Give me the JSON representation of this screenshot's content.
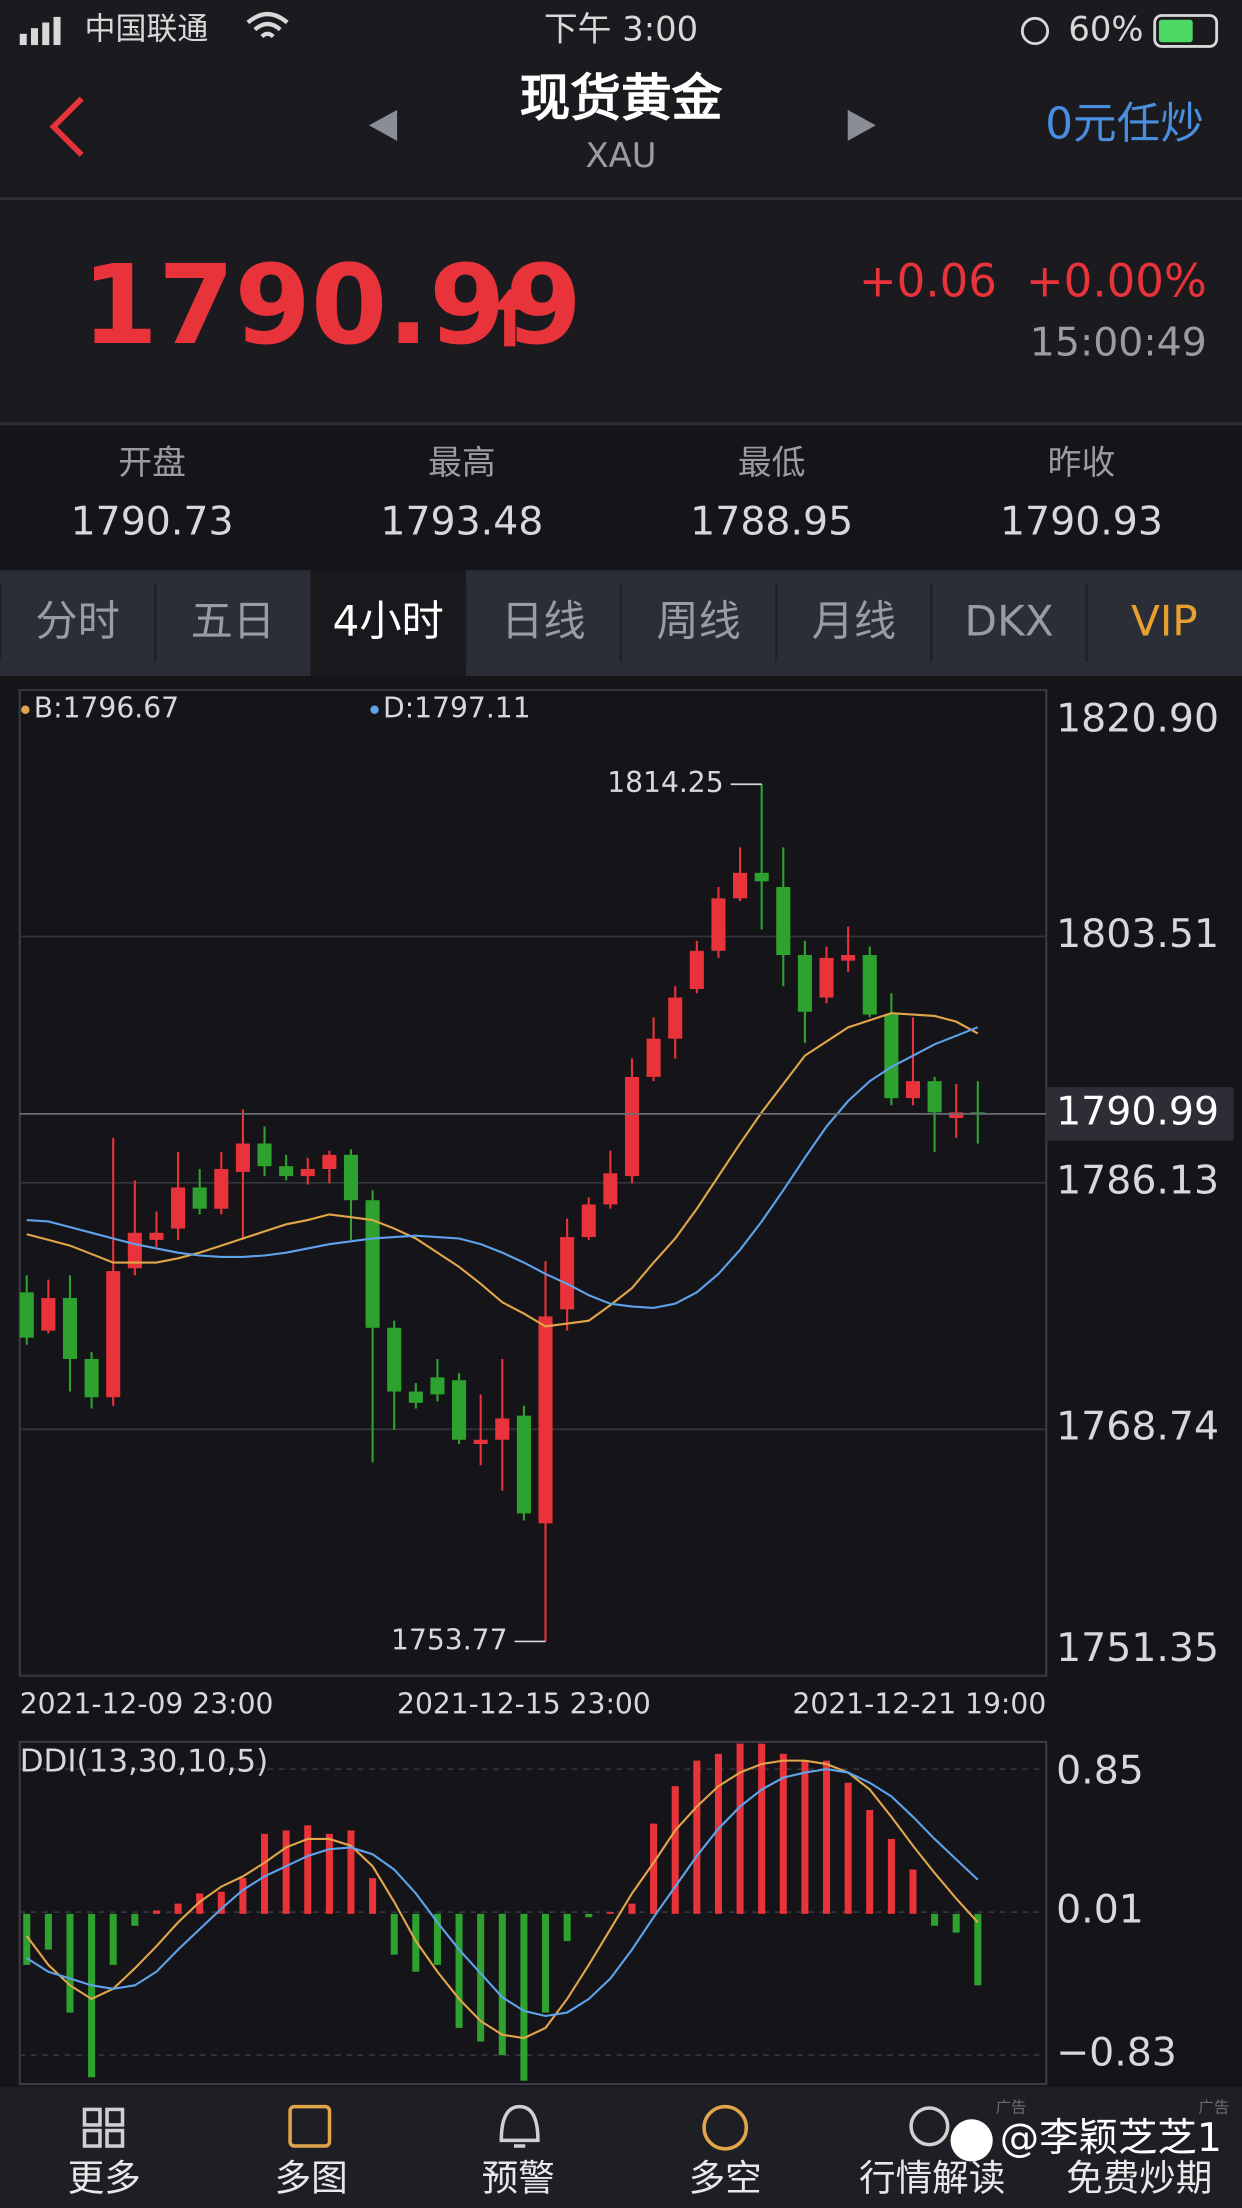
{
  "status": {
    "carrier": "中国联通",
    "time": "下午 3:00",
    "battery": "60%"
  },
  "header": {
    "title": "现货黄金",
    "symbol": "XAU",
    "action": "0元任炒"
  },
  "quote": {
    "price": 1790.99,
    "change": "+0.06",
    "change_pct": "+0.00%",
    "time": "15:00:49"
  },
  "stats": [
    {
      "label": "开盘",
      "value": 1790.73
    },
    {
      "label": "最高",
      "value": 1793.48
    },
    {
      "label": "最低",
      "value": 1788.95
    },
    {
      "label": "昨收",
      "value": 1790.93
    }
  ],
  "tabs": {
    "items": [
      "分时",
      "五日",
      "4小时",
      "日线",
      "周线",
      "月线",
      "DKX",
      "VIP"
    ],
    "active": 2,
    "highlight": 7
  },
  "chart_data": [
    {
      "type": "candlestick",
      "categories": [
        "2021-12-09 23:00",
        null,
        null,
        null,
        null,
        null,
        null,
        null,
        null,
        null,
        null,
        null,
        null,
        null,
        null,
        null,
        null,
        null,
        null,
        null,
        null,
        null,
        null,
        "2021-12-15 23:00",
        null,
        null,
        null,
        null,
        null,
        null,
        null,
        null,
        null,
        null,
        null,
        null,
        null,
        null,
        null,
        null,
        null,
        "2021-12-21 19:00",
        null,
        null,
        null
      ],
      "open": [
        1778.4,
        1775.7,
        1778.0,
        1773.7,
        1771.0,
        1780.1,
        1782.1,
        1782.9,
        1785.8,
        1784.3,
        1786.9,
        1788.9,
        1787.3,
        1786.6,
        1787.1,
        1788.1,
        1784.9,
        1775.9,
        1771.4,
        1772.4,
        1772.2,
        1767.7,
        1768.0,
        1769.7,
        1762.1,
        1777.2,
        1782.3,
        1784.6,
        1786.6,
        1793.6,
        1796.3,
        1799.8,
        1802.5,
        1806.2,
        1808.0,
        1807.0,
        1802.2,
        1799.2,
        1801.8,
        1802.2,
        1798.0,
        1792.1,
        1793.3,
        1790.7,
        1791.1
      ],
      "high": [
        1779.6,
        1779.3,
        1779.6,
        1774.2,
        1789.3,
        1786.3,
        1784.1,
        1788.3,
        1787.1,
        1788.3,
        1791.3,
        1790.1,
        1788.1,
        1787.9,
        1788.4,
        1788.5,
        1785.6,
        1776.4,
        1772.0,
        1773.7,
        1772.7,
        1771.2,
        1773.7,
        1770.4,
        1780.6,
        1783.6,
        1785.1,
        1788.4,
        1794.9,
        1797.8,
        1800.0,
        1803.2,
        1807.0,
        1809.8,
        1814.25,
        1809.8,
        1803.2,
        1802.8,
        1804.2,
        1802.8,
        1799.5,
        1797.8,
        1793.6,
        1793.1,
        1793.3
      ],
      "low": [
        1774.7,
        1775.5,
        1771.4,
        1770.2,
        1770.4,
        1779.6,
        1781.6,
        1782.1,
        1783.9,
        1783.9,
        1782.1,
        1786.6,
        1786.3,
        1786.0,
        1786.1,
        1782.1,
        1766.4,
        1768.7,
        1770.2,
        1770.7,
        1767.7,
        1766.2,
        1764.4,
        1762.3,
        1753.77,
        1775.7,
        1782.1,
        1784.3,
        1786.1,
        1793.3,
        1794.9,
        1799.5,
        1802.0,
        1806.0,
        1804.0,
        1800.0,
        1796.0,
        1798.8,
        1801.0,
        1797.8,
        1791.6,
        1791.6,
        1788.3,
        1789.3,
        1788.9
      ],
      "close": [
        1775.2,
        1778.0,
        1773.7,
        1771.0,
        1779.9,
        1782.6,
        1782.6,
        1785.8,
        1784.3,
        1787.1,
        1788.9,
        1787.3,
        1786.6,
        1787.1,
        1788.1,
        1784.9,
        1775.9,
        1771.4,
        1770.6,
        1771.2,
        1768.0,
        1768.0,
        1769.5,
        1762.8,
        1776.7,
        1782.3,
        1784.6,
        1786.8,
        1793.6,
        1796.3,
        1799.2,
        1802.5,
        1806.2,
        1808.0,
        1807.4,
        1802.2,
        1798.2,
        1802.0,
        1802.2,
        1798.0,
        1792.1,
        1793.3,
        1791.1,
        1791.1,
        1790.99
      ],
      "colors": {
        "up": "#e8333a",
        "down": "#2ea22f"
      },
      "lines": [
        {
          "name": "B:1796.67",
          "color": "#e2a54a",
          "values": [
            1782.5,
            1782.1,
            1781.7,
            1781.1,
            1780.5,
            1780.5,
            1780.5,
            1780.8,
            1781.2,
            1781.7,
            1782.2,
            1782.7,
            1783.2,
            1783.5,
            1783.9,
            1783.7,
            1783.5,
            1782.9,
            1782.2,
            1781.2,
            1780.2,
            1779.0,
            1777.7,
            1776.9,
            1776.0,
            1776.2,
            1776.4,
            1777.5,
            1778.7,
            1780.5,
            1782.2,
            1784.3,
            1786.6,
            1788.9,
            1791.1,
            1793.1,
            1795.1,
            1796.1,
            1797.1,
            1797.6,
            1798.1,
            1798.0,
            1797.9,
            1797.5,
            1796.67
          ]
        },
        {
          "name": "D:1797.11",
          "color": "#5ea3ea",
          "values": [
            1783.5,
            1783.4,
            1783.0,
            1782.6,
            1782.2,
            1781.8,
            1781.5,
            1781.2,
            1781.0,
            1780.9,
            1780.9,
            1781.0,
            1781.2,
            1781.5,
            1781.8,
            1782.0,
            1782.2,
            1782.3,
            1782.4,
            1782.3,
            1782.2,
            1781.8,
            1781.2,
            1780.5,
            1779.7,
            1779.0,
            1778.2,
            1777.6,
            1777.4,
            1777.3,
            1777.6,
            1778.4,
            1779.7,
            1781.4,
            1783.4,
            1785.6,
            1787.9,
            1790.1,
            1791.9,
            1793.3,
            1794.3,
            1795.1,
            1795.9,
            1796.5,
            1797.11
          ]
        }
      ],
      "ylim": [
        1751.35,
        1820.9
      ],
      "yticks": [
        {
          "value": 1820.9,
          "label": "1820.90"
        },
        1803.51,
        1786.13,
        1768.74,
        1751.35
      ],
      "grid": true
    },
    {
      "type": "bar",
      "title": "DDI(13,30,10,5)",
      "values": [
        -0.3,
        -0.21,
        -0.58,
        -0.96,
        -0.3,
        -0.07,
        0.02,
        0.06,
        0.12,
        0.13,
        0.21,
        0.47,
        0.49,
        0.52,
        0.47,
        0.49,
        0.21,
        -0.24,
        -0.34,
        -0.3,
        -0.67,
        -0.75,
        -0.83,
        -0.98,
        -0.58,
        -0.16,
        -0.02,
        0.01,
        0.06,
        0.53,
        0.75,
        0.9,
        0.94,
        1.0,
        1.0,
        0.94,
        0.9,
        0.9,
        0.77,
        0.61,
        0.44,
        0.26,
        -0.07,
        -0.11,
        -0.42
      ],
      "colors": {
        "up": "#e8333a",
        "down": "#2ea22f"
      },
      "lines": [
        {
          "color": "#e2a54a",
          "values": [
            -0.13,
            -0.3,
            -0.42,
            -0.5,
            -0.44,
            -0.32,
            -0.19,
            -0.05,
            0.07,
            0.16,
            0.22,
            0.3,
            0.39,
            0.44,
            0.44,
            0.4,
            0.28,
            0.07,
            -0.16,
            -0.34,
            -0.5,
            -0.63,
            -0.71,
            -0.73,
            -0.67,
            -0.5,
            -0.3,
            -0.09,
            0.12,
            0.3,
            0.49,
            0.63,
            0.75,
            0.83,
            0.88,
            0.9,
            0.9,
            0.88,
            0.83,
            0.73,
            0.57,
            0.4,
            0.24,
            0.09,
            -0.05
          ]
        },
        {
          "color": "#5ea3ea",
          "values": [
            -0.26,
            -0.34,
            -0.38,
            -0.42,
            -0.44,
            -0.42,
            -0.34,
            -0.21,
            -0.09,
            0.03,
            0.14,
            0.22,
            0.28,
            0.34,
            0.38,
            0.39,
            0.35,
            0.26,
            0.12,
            -0.05,
            -0.21,
            -0.35,
            -0.49,
            -0.57,
            -0.6,
            -0.58,
            -0.5,
            -0.38,
            -0.21,
            -0.02,
            0.16,
            0.34,
            0.5,
            0.63,
            0.73,
            0.8,
            0.83,
            0.85,
            0.83,
            0.77,
            0.69,
            0.57,
            0.44,
            0.32,
            0.2
          ]
        }
      ],
      "ylim": [
        -1.0,
        1.01
      ],
      "yticks": [
        0.85,
        0.01,
        {
          "value": -0.83,
          "label": "−0.83"
        }
      ]
    }
  ],
  "nav": [
    "更多",
    "多图",
    "预警",
    "多空",
    "行情解读",
    "免费炒期"
  ],
  "ad_label": "广告",
  "watermark": "@李颖芝芝1"
}
